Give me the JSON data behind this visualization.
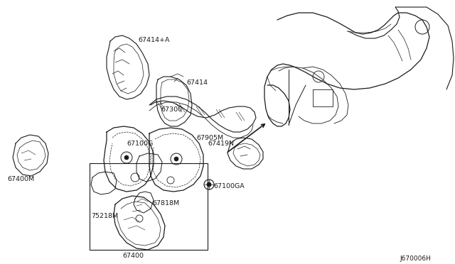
{
  "bg_color": "#ffffff",
  "line_color": "#1a1a1a",
  "diagram_code": "J670006H",
  "fig_w": 6.4,
  "fig_h": 3.72,
  "dpi": 100,
  "xlim": [
    0,
    640
  ],
  "ylim": [
    0,
    372
  ]
}
